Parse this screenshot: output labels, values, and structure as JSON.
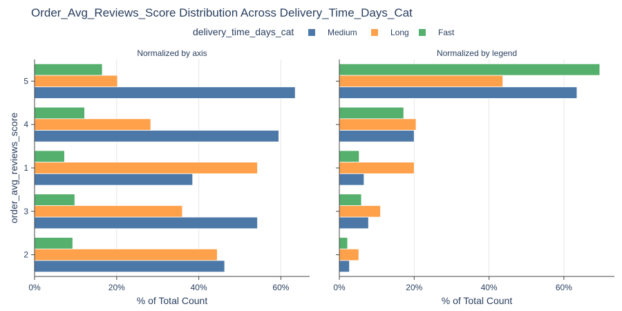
{
  "chart_data": {
    "type": "bar",
    "orientation": "horizontal",
    "title": "Order_Avg_Reviews_Score Distribution Across Delivery_Time_Days_Cat",
    "legend": {
      "title": "delivery_time_days_cat",
      "placement": "top-center"
    },
    "ylabel": "order_avg_reviews_score",
    "categories": [
      "5",
      "4",
      "1",
      "3",
      "2"
    ],
    "series_colors": {
      "Medium": "#4c78a8",
      "Long": "#ffa14a",
      "Fast": "#54b06c"
    },
    "panels": [
      {
        "subtitle": "Normalized by axis",
        "xlabel": "% of Total Count",
        "xlim": [
          0,
          67
        ],
        "xticks": [
          0,
          20,
          40,
          60
        ],
        "xtick_labels": [
          "0%",
          "20%",
          "40%",
          "60%"
        ],
        "show_y_tick_labels": true,
        "grid": true,
        "series": [
          {
            "name": "Medium",
            "values": [
              63.5,
              59.5,
              38.5,
              54.3,
              46.3
            ]
          },
          {
            "name": "Long",
            "values": [
              20.2,
              28.3,
              54.3,
              36.0,
              44.5
            ]
          },
          {
            "name": "Fast",
            "values": [
              16.5,
              12.2,
              7.3,
              9.8,
              9.3
            ]
          }
        ]
      },
      {
        "subtitle": "Normalized by legend",
        "xlabel": "% of Total Count",
        "xlim": [
          0,
          73.5
        ],
        "xticks": [
          0,
          20,
          40,
          60
        ],
        "xtick_labels": [
          "0%",
          "20%",
          "40%",
          "60%"
        ],
        "show_y_tick_labels": false,
        "grid": true,
        "series": [
          {
            "name": "Medium",
            "values": [
              63.5,
              20.0,
              6.6,
              7.8,
              2.7
            ]
          },
          {
            "name": "Long",
            "values": [
              43.7,
              20.5,
              20.0,
              11.0,
              5.2
            ]
          },
          {
            "name": "Fast",
            "values": [
              69.6,
              17.2,
              5.3,
              5.9,
              2.2
            ]
          }
        ]
      }
    ]
  }
}
